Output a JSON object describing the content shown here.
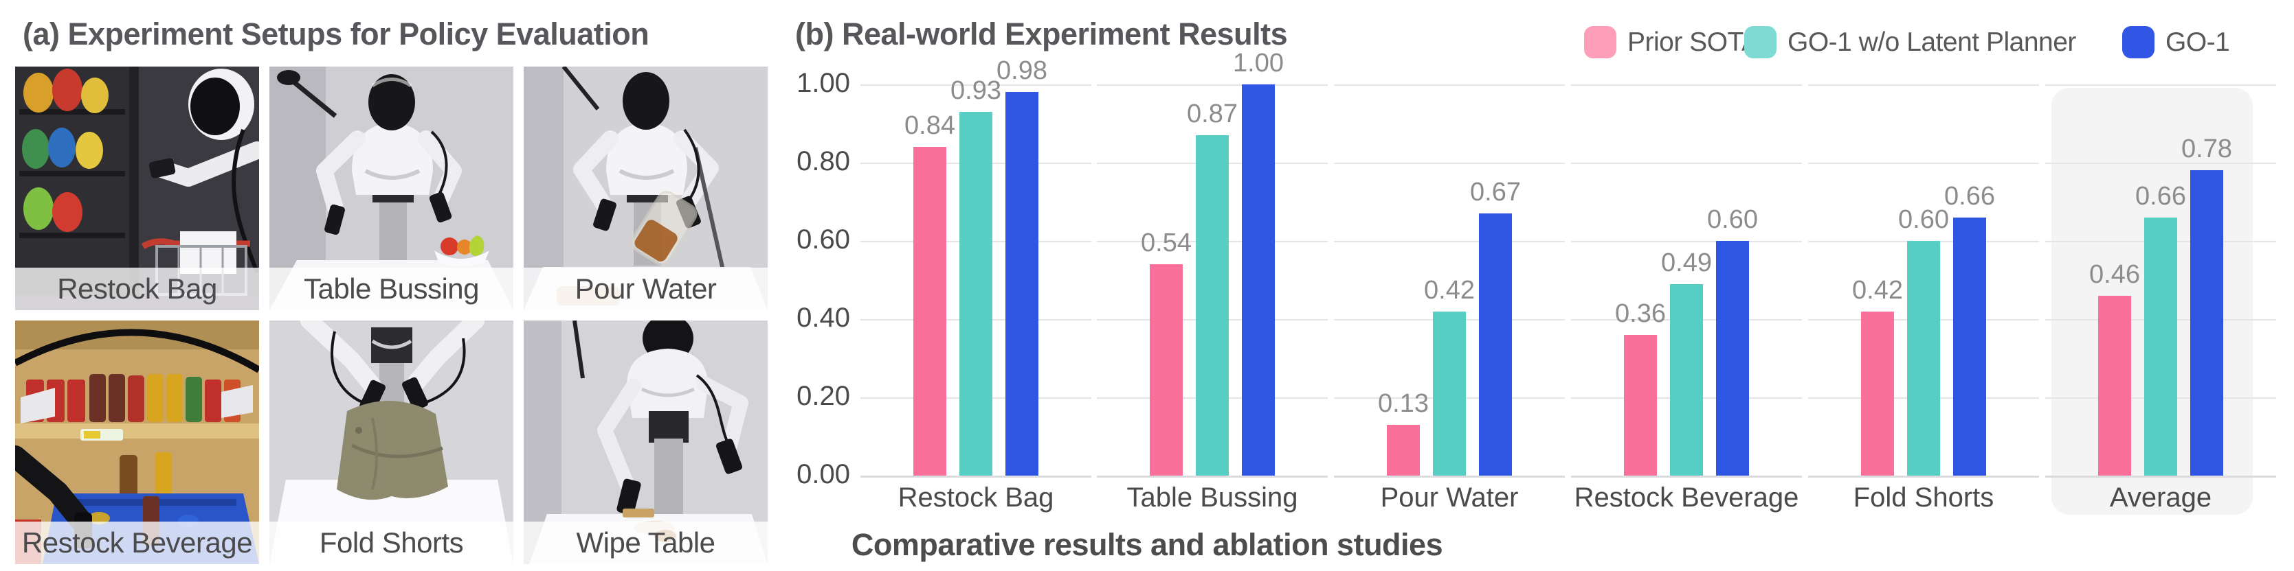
{
  "panel_a": {
    "title": "(a) Experiment Setups for Policy Evaluation",
    "photos": [
      {
        "label": "Restock Bag"
      },
      {
        "label": "Table Bussing"
      },
      {
        "label": "Pour Water"
      },
      {
        "label": "Restock Beverage"
      },
      {
        "label": "Fold Shorts"
      },
      {
        "label": "Wipe Table"
      }
    ]
  },
  "panel_b": {
    "title": "(b) Real-world Experiment Results",
    "caption": "Comparative results and ablation studies",
    "legend": [
      {
        "label": "Prior SOTA",
        "swatch_color": "#fe9eb8"
      },
      {
        "label": "GO-1 w/o Latent Planner",
        "swatch_color": "#7edbd3"
      },
      {
        "label": "GO-1",
        "swatch_color": "#3156e5"
      }
    ]
  },
  "chart_data": {
    "type": "bar",
    "title": "(b) Real-world Experiment Results",
    "caption": "Comparative results and ablation studies",
    "categories": [
      "Restock Bag",
      "Table Bussing",
      "Pour Water",
      "Restock Beverage",
      "Fold Shorts",
      "Average"
    ],
    "series": [
      {
        "name": "Prior SOTA",
        "color": "#f9719b",
        "values": [
          0.84,
          0.54,
          0.13,
          0.36,
          0.42,
          0.46
        ]
      },
      {
        "name": "GO-1 w/o Latent Planner",
        "color": "#56cec4",
        "values": [
          0.93,
          0.87,
          0.42,
          0.49,
          0.6,
          0.66
        ]
      },
      {
        "name": "GO-1",
        "color": "#2f55e3",
        "values": [
          0.98,
          1.0,
          0.67,
          0.6,
          0.66,
          0.78
        ]
      }
    ],
    "ylim": [
      0,
      1.0
    ],
    "yticks": [
      0.0,
      0.2,
      0.4,
      0.6,
      0.8,
      1.0
    ],
    "grid": true,
    "legend_position": "top-right",
    "highlight_category": "Average",
    "value_labels": true
  }
}
